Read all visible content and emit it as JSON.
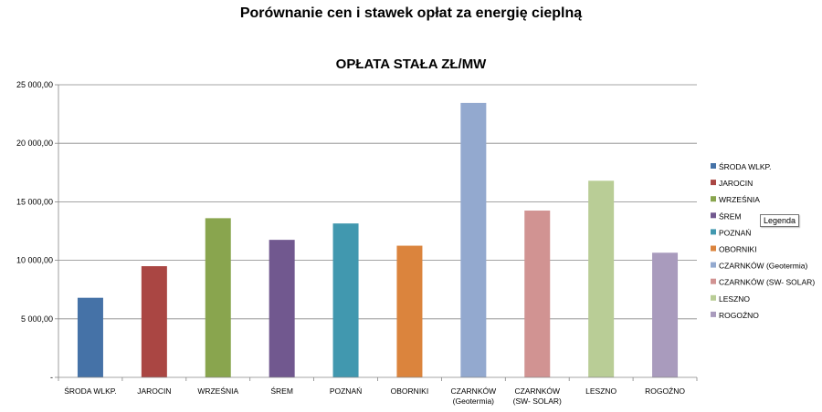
{
  "page_title": "Porównanie cen i stawek opłat za energię cieplną",
  "legend_tooltip": "Legenda",
  "chart_data": {
    "type": "bar",
    "title": "OPŁATA  STAŁA ZŁ/MW",
    "xlabel": "",
    "ylabel": "",
    "ylim": [
      0,
      25000
    ],
    "yticks": [
      0,
      5000,
      10000,
      15000,
      20000,
      25000
    ],
    "ytick_labels": [
      "-",
      "5 000,00",
      "10 000,00",
      "15 000,00",
      "20 000,00",
      "25 000,00"
    ],
    "grid": true,
    "legend_position": "right",
    "categories": [
      {
        "label": [
          "ŚRODA WLKP."
        ],
        "legend": "ŚRODA WLKP.",
        "value": 6800,
        "color": "#4572a7"
      },
      {
        "label": [
          "JAROCIN"
        ],
        "legend": "JAROCIN",
        "value": 9500,
        "color": "#aa4643"
      },
      {
        "label": [
          "WRZEŚNIA"
        ],
        "legend": "WRZEŚNIA",
        "value": 13600,
        "color": "#89a54e"
      },
      {
        "label": [
          "ŚREM"
        ],
        "legend": "ŚREM",
        "value": 11750,
        "color": "#71588f"
      },
      {
        "label": [
          "POZNAŃ"
        ],
        "legend": "POZNAŃ",
        "value": 13150,
        "color": "#4198af"
      },
      {
        "label": [
          "OBORNIKI"
        ],
        "legend": "OBORNIKI",
        "value": 11250,
        "color": "#db843d"
      },
      {
        "label": [
          "CZARNKÓW",
          "(Geotermia)"
        ],
        "legend": "CZARNKÓW (Geotermia)",
        "value": 23450,
        "color": "#93a9cf"
      },
      {
        "label": [
          "CZARNKÓW",
          "(SW- SOLAR)"
        ],
        "legend": "CZARNKÓW (SW- SOLAR)",
        "value": 14250,
        "color": "#d19392"
      },
      {
        "label": [
          "LESZNO"
        ],
        "legend": "LESZNO",
        "value": 16800,
        "color": "#b9cd96"
      },
      {
        "label": [
          "ROGOŹNO"
        ],
        "legend": "ROGOŹNO",
        "value": 10650,
        "color": "#a99bbd"
      }
    ]
  }
}
